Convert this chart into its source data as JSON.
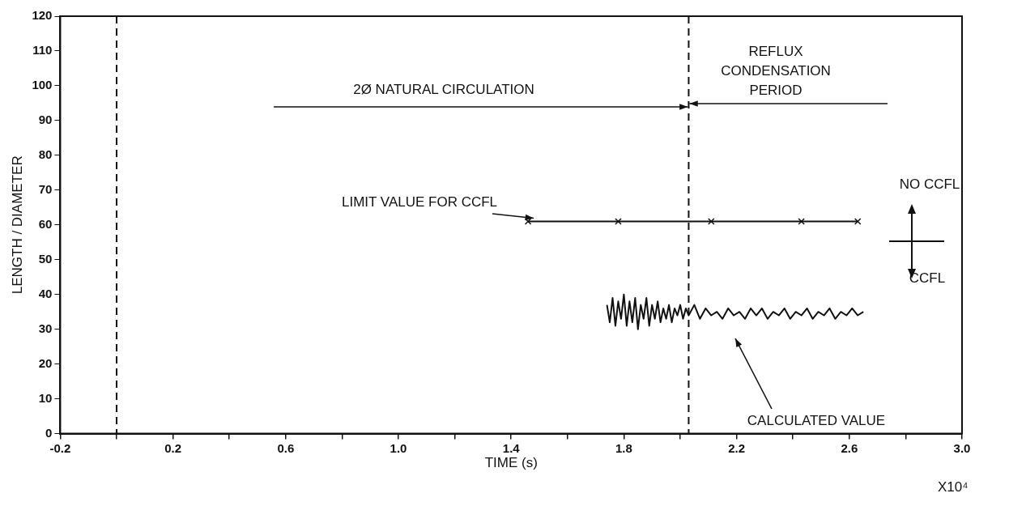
{
  "chart_data": {
    "type": "line",
    "xlabel": "TIME (s)",
    "ylabel": "LENGTH / DIAMETER",
    "xlim": [
      -0.2,
      3.0
    ],
    "xticks": [
      -0.2,
      {
        "value": 0,
        "label": null
      },
      0.2,
      {
        "value": 0.4,
        "label": null
      },
      0.6,
      {
        "value": 0.8,
        "label": null
      },
      {
        "value": 1.0,
        "label": "1.0"
      },
      {
        "value": 1.2,
        "label": null
      },
      1.4,
      {
        "value": 1.6,
        "label": null
      },
      1.8,
      {
        "value": 2.0,
        "label": null
      },
      2.2,
      {
        "value": 2.4,
        "label": null
      },
      2.6,
      {
        "value": 2.8,
        "label": null
      },
      {
        "value": 3.0,
        "label": "3.0"
      }
    ],
    "ylim": [
      0,
      120
    ],
    "yticks": [
      0,
      10,
      20,
      30,
      40,
      50,
      60,
      70,
      80,
      90,
      100,
      110,
      120
    ],
    "grid": false,
    "legend": false,
    "series": [
      {
        "color": "#111111",
        "marker": "cross",
        "x": [
          1.46,
          1.78,
          2.11,
          2.43,
          2.63
        ],
        "values": [
          61,
          61,
          61,
          61,
          61
        ]
      },
      {
        "color": "#111111",
        "marker": "none",
        "x": [
          1.74,
          1.75,
          1.76,
          1.77,
          1.78,
          1.79,
          1.8,
          1.81,
          1.82,
          1.83,
          1.84,
          1.85,
          1.86,
          1.87,
          1.88,
          1.89,
          1.9,
          1.91,
          1.92,
          1.93,
          1.94,
          1.95,
          1.96,
          1.97,
          1.98,
          1.99,
          2.0,
          2.01,
          2.02,
          2.03,
          2.05,
          2.07,
          2.09,
          2.11,
          2.13,
          2.15,
          2.17,
          2.19,
          2.21,
          2.23,
          2.25,
          2.27,
          2.29,
          2.31,
          2.33,
          2.35,
          2.37,
          2.39,
          2.41,
          2.43,
          2.45,
          2.47,
          2.49,
          2.51,
          2.53,
          2.55,
          2.57,
          2.59,
          2.61,
          2.63,
          2.65
        ],
        "values": [
          37,
          32,
          39,
          31,
          38,
          33,
          40,
          31,
          38,
          32,
          39,
          30,
          37,
          33,
          39,
          31,
          37,
          33,
          38,
          32,
          36,
          33,
          37,
          32,
          36,
          34,
          37,
          33,
          36,
          34,
          37,
          33,
          36,
          34,
          35,
          33,
          36,
          34,
          35,
          33,
          36,
          34,
          36,
          33,
          35,
          34,
          36,
          33,
          35,
          34,
          36,
          33,
          35,
          34,
          36,
          33,
          35,
          34,
          36,
          34,
          35
        ]
      }
    ],
    "ref_lines": [
      {
        "axis": "x",
        "value": 0,
        "line_style": "dashed",
        "color": "#111111"
      },
      {
        "axis": "x",
        "value": 2.03,
        "line_style": "dashed",
        "color": "#111111"
      }
    ],
    "annotations": [
      {
        "text": "LIMIT VALUE FOR CCFL",
        "x": 1.48,
        "y": 61
      },
      "CALCULATED VALUE",
      "2Ø NATURAL CIRCULATION",
      "REFLUX CONDENSATION PERIOD",
      "NO CCFL",
      "CCFL",
      "X10⁴"
    ]
  }
}
